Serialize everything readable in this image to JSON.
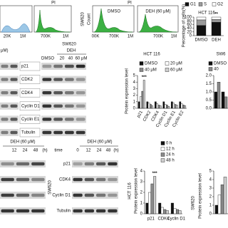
{
  "figure": {
    "flow_left": {
      "title": "PI",
      "xtick_labels": [
        "20K",
        "1M",
        "700K",
        "1M"
      ]
    },
    "flow_sw620": {
      "title": "PI",
      "row_label": "SW620",
      "y_label": "Count",
      "panels": [
        {
          "label": "DMSO",
          "xtick_labels": [
            "00K",
            "700K",
            "1M"
          ]
        },
        {
          "label": "DEH (60 μM)",
          "xtick_labels": [
            "700K",
            "1M"
          ]
        }
      ]
    },
    "blot_left_top": {
      "header": "μM)"
    },
    "blot_sw620": {
      "cell_line": "SW620",
      "treatment": "DEH",
      "lanes": [
        "DMSO",
        "20",
        "40",
        "60 μM"
      ],
      "proteins": [
        "p21",
        "CDK2",
        "CDK4",
        "Cyclin D1",
        "Cyclin E1",
        "Tubulin"
      ]
    },
    "blot_left_bottom": {
      "treatment": "DEH (60 μM)",
      "lanes": [
        "12",
        "24",
        "48"
      ],
      "unit": "(h)"
    },
    "blot_time": {
      "treatment": "DEH (60 μM)",
      "time_label": "time",
      "lanes": [
        "0",
        "12",
        "24",
        "48"
      ],
      "unit": "(h)",
      "cell_line": "SW620",
      "proteins": [
        "p21",
        "CDK4",
        "Cyclin D1",
        "Tubulin"
      ]
    }
  },
  "chart_data": [
    {
      "type": "bar",
      "stacked": true,
      "title": "HCT 116",
      "y_label": "Percentage of cells(%)",
      "categories": [
        "DMSO",
        "DEH"
      ],
      "series": [
        {
          "name": "G1",
          "color": "#111111",
          "values": [
            55,
            72
          ]
        },
        {
          "name": "S",
          "color": "#9a9a9a",
          "values": [
            30,
            15
          ]
        },
        {
          "name": "G2",
          "color": "#ffffff",
          "values": [
            15,
            13
          ]
        }
      ],
      "ylim": [
        0,
        100
      ],
      "yticks": [
        0,
        20,
        40,
        60,
        80,
        100
      ],
      "annotations": [
        "**"
      ]
    },
    {
      "type": "bar",
      "title": "HCT 116",
      "y_label": "Protein expression level",
      "categories": [
        "p21",
        "CDK2",
        "CDK4",
        "Cyclin D1",
        "Cyclin E1",
        "Cyclin E2"
      ],
      "series": [
        {
          "name": "DMSO",
          "color": "#111111",
          "values": [
            1,
            1,
            1,
            1,
            1,
            1
          ]
        },
        {
          "name": "20 μM",
          "color": "#ffffff",
          "values": [
            1.8,
            0.8,
            0.7,
            0.6,
            0.8,
            0.7
          ]
        },
        {
          "name": "40 μM",
          "color": "#8a8a8a",
          "values": [
            2.6,
            0.6,
            0.5,
            0.5,
            0.6,
            0.5
          ]
        },
        {
          "name": "60 μM",
          "color": "#cfcfcf",
          "values": [
            4.3,
            0.4,
            0.4,
            0.3,
            0.5,
            0.4
          ]
        }
      ],
      "ylim": [
        0,
        5
      ],
      "yticks": [
        0,
        1,
        2,
        3,
        4,
        5
      ],
      "annotations": [
        "***"
      ]
    },
    {
      "type": "bar",
      "title": "SW6",
      "categories": [
        null,
        null
      ],
      "series": [
        {
          "name": "DMSO",
          "color": "#111111",
          "values": [
            1,
            1
          ]
        },
        {
          "name": "40",
          "color": "#8a8a8a",
          "values": [
            1.6,
            0.7
          ]
        }
      ],
      "ylim": [
        0,
        2
      ],
      "yticks": [
        {
          "value": 0,
          "label": "0.0"
        },
        {
          "value": 0.5,
          "label": "0.5"
        },
        {
          "value": 1,
          "label": "1.0"
        },
        {
          "value": 1.5,
          "label": "1.5"
        },
        {
          "value": 2,
          "label": "2.0"
        }
      ]
    },
    {
      "type": "bar",
      "title": "HCT 116",
      "y_label": "Protein expression level",
      "categories": [
        "p21",
        "CDK4",
        "Cyclin D1"
      ],
      "series": [
        {
          "name": "0 h",
          "color": "#111111",
          "values": [
            1,
            1,
            1
          ]
        },
        {
          "name": "12 h",
          "color": "#ffffff",
          "values": [
            2,
            0.6,
            0.5
          ]
        },
        {
          "name": "24 h",
          "color": "#8a8a8a",
          "values": [
            2.8,
            0.4,
            0.4
          ]
        },
        {
          "name": "48 h",
          "color": "#cfcfcf",
          "values": [
            3.5,
            0.3,
            0.3
          ]
        }
      ],
      "ylim": [
        0,
        4
      ],
      "yticks": [
        0,
        1,
        2,
        3,
        4
      ],
      "annotations": [
        "***"
      ]
    },
    {
      "type": "bar",
      "title": "SW620",
      "y_label": "Protein expression level",
      "categories": [
        null
      ],
      "series": [
        {
          "color": "#111111",
          "values": [
            1
          ]
        },
        {
          "color": "#ffffff",
          "values": [
            2.2
          ]
        },
        {
          "color": "#8a8a8a",
          "values": [
            3.4
          ]
        },
        {
          "color": "#cfcfcf",
          "values": [
            4.3
          ]
        }
      ],
      "ylim": [
        0,
        5
      ],
      "yticks": [
        0,
        1,
        2,
        3,
        4,
        5
      ]
    }
  ]
}
